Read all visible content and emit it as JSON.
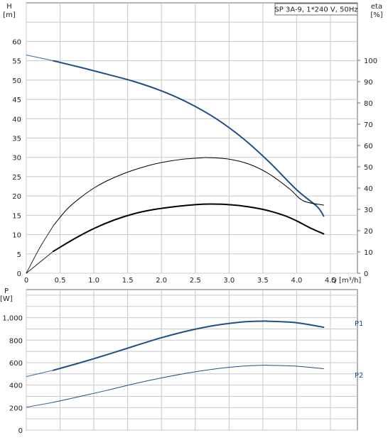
{
  "chart_data": [
    {
      "type": "line",
      "title": "SP 3A-9, 1*240 V, 50Hz",
      "xlabel": "Q [m³/h]",
      "ylabel": "H",
      "ylabel_unit": "[m]",
      "y2label": "eta",
      "y2label_unit": "[%]",
      "xlim": [
        0,
        4.9
      ],
      "ylim": [
        0,
        70
      ],
      "y2lim": [
        0,
        127
      ],
      "grid": true,
      "x_ticks": [
        "0",
        "0.5",
        "1.0",
        "1.5",
        "2.0",
        "2.5",
        "3.0",
        "3.5",
        "4.0",
        "4.5"
      ],
      "y_ticks": [
        "0",
        "5",
        "10",
        "15",
        "20",
        "25",
        "30",
        "35",
        "40",
        "45",
        "50",
        "55",
        "60"
      ],
      "y2_ticks": [
        "0",
        "10",
        "20",
        "30",
        "40",
        "50",
        "60",
        "70",
        "80",
        "90",
        "100"
      ],
      "series": [
        {
          "key": "H",
          "axis": "left",
          "color": "#1f4e8a",
          "width": 2,
          "x": [
            0,
            0.4,
            0.8,
            1.2,
            1.6,
            2.0,
            2.4,
            2.8,
            3.2,
            3.6,
            4.0,
            4.3,
            4.4
          ],
          "y": [
            56.5,
            55.0,
            53.3,
            51.5,
            49.6,
            47.2,
            44.1,
            40.1,
            35.0,
            28.7,
            21.6,
            17.3,
            14.8
          ],
          "solid_from": 0.4
        },
        {
          "key": "eta_total",
          "axis": "right",
          "color": "#000000",
          "width": 1,
          "x": [
            0,
            0.2,
            0.4,
            0.6,
            0.8,
            1.0,
            1.2,
            1.5,
            1.8,
            2.0,
            2.3,
            2.6,
            2.7,
            3.0,
            3.3,
            3.6,
            3.9,
            4.1,
            4.4
          ],
          "y": [
            0,
            12.0,
            22.3,
            30.0,
            35.5,
            40.0,
            43.5,
            47.5,
            50.5,
            52.0,
            53.5,
            54.2,
            54.3,
            53.6,
            51.2,
            46.5,
            39.5,
            34.0,
            32.0
          ],
          "solid_from": 0.4
        },
        {
          "key": "eta_hydraulic",
          "axis": "right",
          "color": "#000000",
          "width": 2,
          "x": [
            0,
            0.4,
            0.7,
            1.0,
            1.3,
            1.6,
            1.9,
            2.2,
            2.5,
            2.7,
            2.9,
            3.2,
            3.5,
            3.8,
            4.0,
            4.2,
            4.4
          ],
          "y": [
            0,
            10.3,
            16.0,
            21.0,
            25.0,
            28.0,
            30.0,
            31.3,
            32.2,
            32.5,
            32.4,
            31.6,
            30.0,
            27.3,
            24.6,
            21.3,
            18.5
          ],
          "solid_from": 0.4
        }
      ]
    },
    {
      "type": "line",
      "xlabel": "",
      "ylabel": "P",
      "ylabel_unit": "[W]",
      "xlim": [
        0,
        4.9
      ],
      "ylim": [
        0,
        1250
      ],
      "grid": true,
      "y_ticks": [
        "0",
        "200",
        "400",
        "600",
        "800",
        "1,000"
      ],
      "y_tick_values": [
        0,
        200,
        400,
        600,
        800,
        1000
      ],
      "series": [
        {
          "name": "P1",
          "color": "#1f4e8a",
          "width": 2,
          "x": [
            0,
            0.4,
            0.8,
            1.2,
            1.6,
            2.0,
            2.4,
            2.8,
            3.2,
            3.5,
            3.6,
            4.0,
            4.4
          ],
          "y": [
            476,
            532,
            600,
            672,
            748,
            822,
            884,
            932,
            962,
            969,
            968,
            955,
            915
          ],
          "solid_from": 0.4
        },
        {
          "name": "P2",
          "color": "#1f4e8a",
          "width": 1,
          "x": [
            0,
            0.4,
            0.8,
            1.2,
            1.6,
            2.0,
            2.4,
            2.8,
            3.2,
            3.5,
            3.6,
            4.0,
            4.4
          ],
          "y": [
            203,
            247,
            300,
            355,
            413,
            464,
            509,
            545,
            569,
            577,
            576,
            568,
            546
          ],
          "solid_from": 0.4
        }
      ]
    }
  ]
}
